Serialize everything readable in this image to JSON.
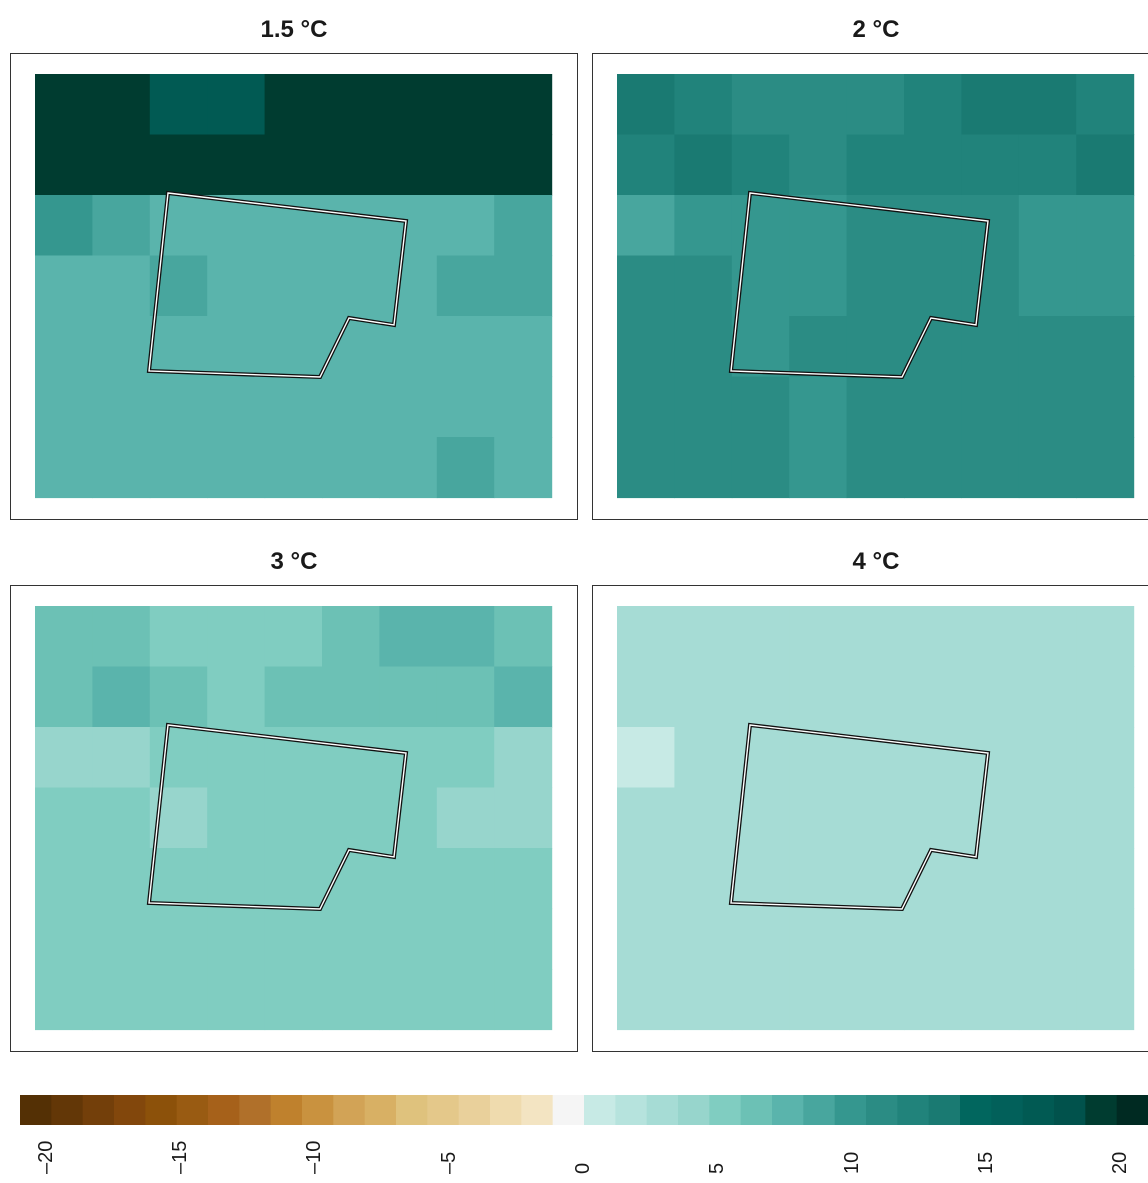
{
  "chart_data": {
    "type": "heatmap",
    "panels": [
      {
        "title": "1.5 °C",
        "grid": [
          [
            19,
            19,
            17,
            17,
            19,
            19,
            19,
            19,
            19
          ],
          [
            19,
            19,
            19,
            19,
            19,
            19,
            19,
            19,
            19
          ],
          [
            10,
            9,
            8,
            8,
            8,
            8,
            8,
            8,
            9
          ],
          [
            8,
            8,
            9,
            8,
            8,
            8,
            8,
            9,
            9
          ],
          [
            8,
            8,
            8,
            8,
            8,
            8,
            8,
            8,
            8
          ],
          [
            8,
            8,
            8,
            8,
            8,
            8,
            8,
            8,
            8
          ],
          [
            8,
            8,
            8,
            8,
            8,
            8,
            8,
            9,
            8
          ]
        ]
      },
      {
        "title": "2 °C",
        "grid": [
          [
            13,
            12,
            11,
            11,
            11,
            12,
            13,
            13,
            12
          ],
          [
            12,
            13,
            12,
            11,
            12,
            12,
            12,
            12,
            13
          ],
          [
            9,
            10,
            10,
            10,
            11,
            11,
            11,
            10,
            10
          ],
          [
            11,
            11,
            10,
            10,
            11,
            11,
            11,
            10,
            10
          ],
          [
            11,
            11,
            10,
            11,
            11,
            11,
            11,
            11,
            11
          ],
          [
            11,
            11,
            11,
            10,
            11,
            11,
            11,
            11,
            11
          ],
          [
            11,
            11,
            11,
            10,
            11,
            11,
            11,
            11,
            11
          ]
        ]
      },
      {
        "title": "3 °C",
        "grid": [
          [
            6,
            6,
            5,
            5,
            5,
            6,
            7,
            7,
            6
          ],
          [
            6,
            7,
            6,
            5,
            6,
            6,
            6,
            6,
            7
          ],
          [
            4,
            4,
            5,
            5,
            5,
            5,
            5,
            5,
            4
          ],
          [
            5,
            5,
            4,
            5,
            5,
            5,
            5,
            4,
            4
          ],
          [
            5,
            5,
            5,
            5,
            5,
            5,
            5,
            5,
            5
          ],
          [
            5,
            5,
            5,
            5,
            5,
            5,
            5,
            5,
            5
          ],
          [
            5,
            5,
            5,
            5,
            5,
            5,
            5,
            5,
            5
          ]
        ]
      },
      {
        "title": "4 °C",
        "grid": [
          [
            3,
            3,
            3,
            3,
            3,
            3,
            3,
            3,
            3
          ],
          [
            3,
            3,
            3,
            3,
            3,
            3,
            3,
            3,
            3
          ],
          [
            0,
            3,
            3,
            3,
            3,
            3,
            3,
            3,
            3
          ],
          [
            3,
            3,
            3,
            3,
            3,
            3,
            3,
            3,
            3
          ],
          [
            3,
            3,
            3,
            3,
            3,
            3,
            3,
            3,
            3
          ],
          [
            3,
            3,
            3,
            3,
            3,
            3,
            3,
            3,
            3
          ],
          [
            3,
            3,
            3,
            3,
            3,
            3,
            3,
            3,
            3
          ]
        ]
      }
    ],
    "colorbar": {
      "range": [
        -21,
        21
      ],
      "ticks": [
        "–20",
        "–15",
        "–10",
        "–5",
        "0",
        "5",
        "10",
        "15",
        "20"
      ],
      "tick_values": [
        -20,
        -15,
        -10,
        -5,
        0,
        5,
        10,
        15,
        20
      ],
      "colors": [
        "#543005",
        "#633707",
        "#733f0a",
        "#82470c",
        "#8c510a",
        "#995b12",
        "#a6611a",
        "#b0702a",
        "#bf812d",
        "#c9923f",
        "#d2a356",
        "#d8b064",
        "#dfc27d",
        "#e4c88a",
        "#e9d09b",
        "#efdbae",
        "#f3e4c2",
        "#f5f5f5",
        "#c7eae5",
        "#b6e3dd",
        "#a6dcd5",
        "#97d5cc",
        "#80cdc1",
        "#6cc1b5",
        "#5ab4ac",
        "#48a69e",
        "#35978f",
        "#2b8c84",
        "#21837b",
        "#1a7a72",
        "#01665e",
        "#02605a",
        "#015a53",
        "#01524c",
        "#003c30",
        "#002a22"
      ]
    },
    "outline": "region boundary polygon drawn on each panel"
  }
}
